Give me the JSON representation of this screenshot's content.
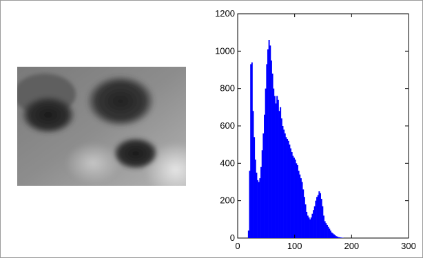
{
  "chart_data": {
    "type": "bar",
    "title": "",
    "xlabel": "",
    "ylabel": "",
    "xlim": [
      0,
      300
    ],
    "ylim": [
      0,
      1200
    ],
    "x_ticks": [
      0,
      100,
      200,
      300
    ],
    "y_ticks": [
      0,
      200,
      400,
      600,
      800,
      1000,
      1200
    ],
    "x_tick_labels": [
      "0",
      "100",
      "200",
      "300"
    ],
    "y_tick_labels": [
      "0",
      "200",
      "400",
      "600",
      "800",
      "1000",
      "1200"
    ],
    "grid": false,
    "legend": "none",
    "bar_color": "#0000ff",
    "series": [
      {
        "x": [
          15,
          18,
          20,
          22,
          24,
          26,
          28,
          30,
          32,
          34,
          36,
          38,
          40,
          42,
          44,
          46,
          48,
          50,
          52,
          54,
          56,
          58,
          60,
          62,
          64,
          66,
          68,
          70,
          72,
          74,
          76,
          78,
          80,
          82,
          84,
          86,
          88,
          90,
          92,
          94,
          96,
          98,
          100,
          102,
          104,
          106,
          108,
          110,
          112,
          114,
          116,
          118,
          120,
          122,
          124,
          126,
          128,
          130,
          132,
          134,
          136,
          138,
          140,
          142,
          144,
          146,
          148,
          150,
          152,
          154,
          156,
          158,
          160,
          162,
          164,
          166,
          168,
          170,
          172,
          174,
          176,
          178,
          180,
          182,
          184,
          186,
          188
        ],
        "values": [
          0,
          40,
          360,
          930,
          940,
          680,
          540,
          420,
          350,
          310,
          300,
          320,
          380,
          470,
          560,
          660,
          800,
          930,
          1010,
          1060,
          1030,
          950,
          880,
          800,
          760,
          720,
          760,
          740,
          680,
          700,
          640,
          600,
          580,
          560,
          540,
          530,
          520,
          500,
          480,
          460,
          440,
          430,
          420,
          400,
          390,
          360,
          340,
          320,
          300,
          260,
          220,
          180,
          140,
          120,
          110,
          100,
          110,
          130,
          150,
          170,
          200,
          220,
          230,
          250,
          240,
          210,
          170,
          120,
          90,
          80,
          70,
          60,
          50,
          40,
          30,
          25,
          20,
          15,
          10,
          8,
          5,
          4,
          3,
          2,
          1,
          0,
          0
        ]
      }
    ]
  }
}
